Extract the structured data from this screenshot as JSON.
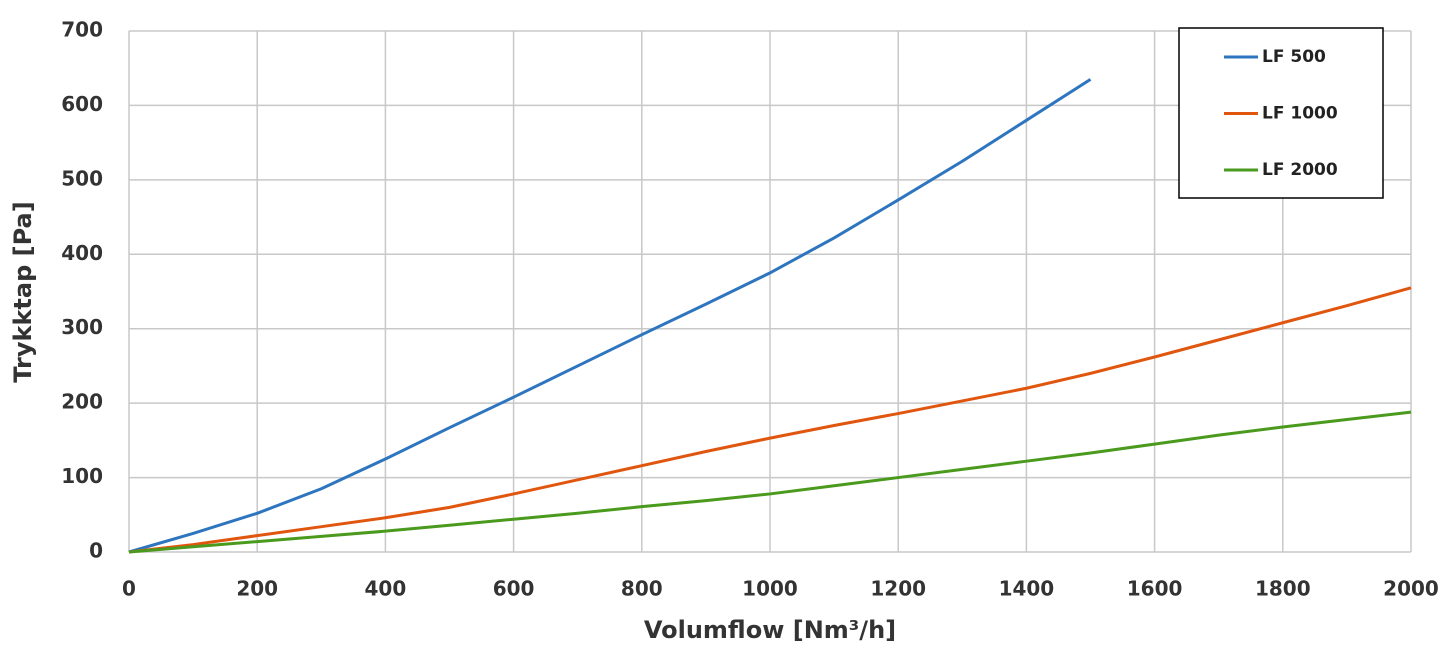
{
  "chart_data": {
    "type": "line",
    "x_label": "Volumflow  [Nm³/h]",
    "y_label": "Trykktap  [Pa]",
    "x": [
      0,
      100,
      200,
      300,
      400,
      500,
      600,
      700,
      800,
      900,
      1000,
      1100,
      1200,
      1300,
      1400,
      1500,
      1600,
      1700,
      1800,
      1900,
      2000
    ],
    "series": [
      {
        "name": "LF 500",
        "color": "#2e75c0",
        "values": [
          0,
          25,
          52,
          85,
          125,
          167,
          208,
          250,
          292,
          333,
          375,
          422,
          473,
          525,
          580,
          635,
          null,
          null,
          null,
          null,
          null
        ]
      },
      {
        "name": "LF 1000",
        "color": "#e0560e",
        "values": [
          0,
          10,
          22,
          34,
          46,
          60,
          78,
          97,
          116,
          135,
          153,
          170,
          186,
          203,
          220,
          240,
          262,
          285,
          308,
          331,
          355
        ]
      },
      {
        "name": "LF 2000",
        "color": "#4a9a1e",
        "values": [
          0,
          7,
          14,
          21,
          28,
          36,
          44,
          52,
          61,
          69,
          78,
          89,
          100,
          111,
          122,
          133,
          145,
          157,
          168,
          178,
          188
        ]
      }
    ],
    "xlim": [
      0,
      2000
    ],
    "xticks": [
      0,
      200,
      400,
      600,
      800,
      1000,
      1200,
      1400,
      1600,
      1800,
      2000
    ],
    "ylim": [
      0,
      700
    ],
    "yticks": [
      0,
      100,
      200,
      300,
      400,
      500,
      600,
      700
    ],
    "grid": true,
    "legend": "upper right"
  }
}
